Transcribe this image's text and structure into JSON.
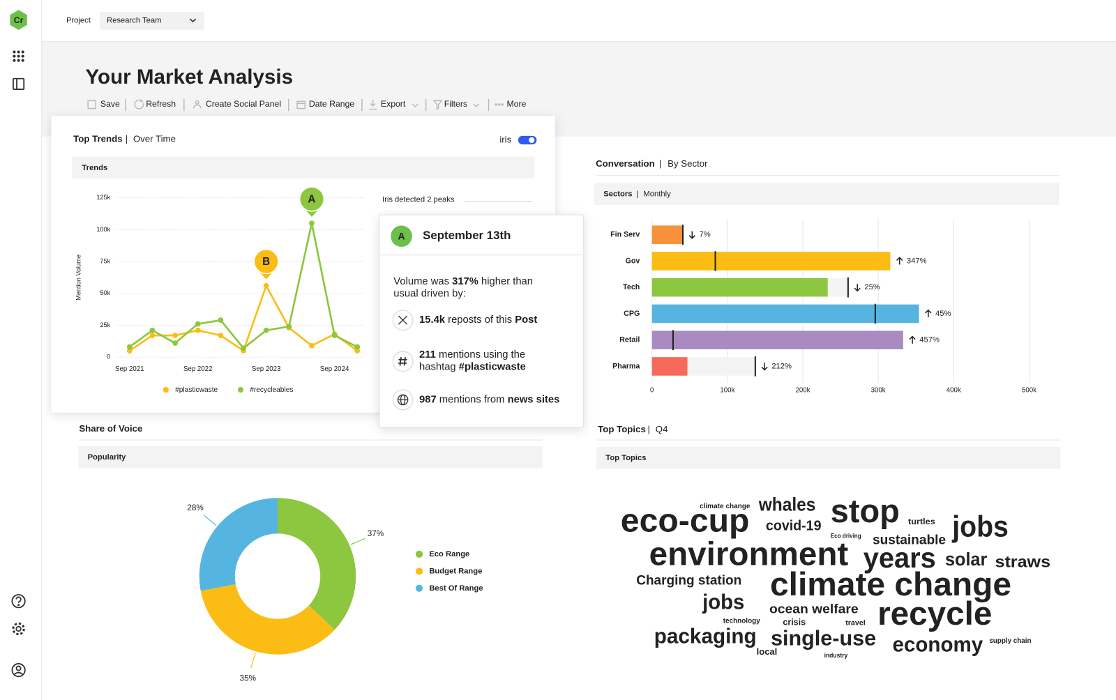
{
  "sidebar": {
    "logo": "Cr"
  },
  "topbar": {
    "project_label": "Project",
    "project_value": "Research Team"
  },
  "page": {
    "title": "Your Market Analysis",
    "toolbar": [
      "Save",
      "Refresh",
      "Create Social Panel",
      "Date Range",
      "Export",
      "Filters",
      "More"
    ]
  },
  "trends_card": {
    "title": "Top Trends",
    "separator": "|",
    "subtitle": "Over Time",
    "toggle_label": "iris",
    "toggle_on": true,
    "panel_label": "Trends",
    "peaks_note": "Iris detected 2 peaks",
    "peaks": [
      "A",
      "B"
    ]
  },
  "tooltip": {
    "badge": "A",
    "title": "September 13th",
    "body": [
      [
        {
          "text": "Volume was "
        },
        {
          "text": "317%",
          "bold": true
        },
        {
          "text": " higher than"
        }
      ],
      [
        {
          "text": "usual driven by:"
        }
      ]
    ],
    "items": [
      {
        "icon": "x",
        "lines": [
          [
            {
              "text": "15.4k",
              "bold": true
            },
            {
              "text": " reposts of this "
            },
            {
              "text": "Post",
              "bold": true
            }
          ]
        ]
      },
      {
        "icon": "hash",
        "lines": [
          [
            {
              "text": "211",
              "bold": true
            },
            {
              "text": " mentions using the"
            }
          ],
          [
            {
              "text": "hashtag "
            },
            {
              "text": "#plasticwaste",
              "bold": true
            }
          ]
        ]
      },
      {
        "icon": "globe",
        "lines": [
          [
            {
              "text": "987",
              "bold": true
            },
            {
              "text": " mentions from "
            },
            {
              "text": "news sites",
              "bold": true
            }
          ]
        ]
      }
    ]
  },
  "sector_card": {
    "title": "Conversation",
    "separator": "|",
    "subtitle": "By Sector",
    "panel_label": "Sectors",
    "panel_separator": "|",
    "panel_sublabel": "Monthly"
  },
  "voice_card": {
    "title": "Share of Voice",
    "panel_label": "Popularity"
  },
  "topics_card": {
    "title": "Top Topics",
    "separator": "|",
    "subtitle": "Q4",
    "panel_label": "Top Topics",
    "words": [
      {
        "text": "climate change",
        "color": "#f56a5a"
      },
      {
        "text": "whales",
        "color": "#56b4e0"
      },
      {
        "text": "stop",
        "color": "#f56a5a"
      },
      {
        "text": "turtles",
        "color": "#fbbd13"
      },
      {
        "text": "eco-cup",
        "color": "#f7923a"
      },
      {
        "text": "covid-19",
        "color": "#a98bc2"
      },
      {
        "text": "jobs",
        "color": "#8dc63f"
      },
      {
        "text": "Eco driving",
        "color": "#8dc63f"
      },
      {
        "text": "sustainable",
        "color": "#fbbd13"
      },
      {
        "text": "environment",
        "color": "#8dc63f"
      },
      {
        "text": "years",
        "color": "#56b4e0"
      },
      {
        "text": "solar",
        "color": "#56b4e0"
      },
      {
        "text": "straws",
        "color": "#f7923a"
      },
      {
        "text": "Charging station",
        "color": "#f7923a"
      },
      {
        "text": "climate change",
        "color": "#fbbd13"
      },
      {
        "text": "jobs",
        "color": "#a98bc2"
      },
      {
        "text": "ocean welfare",
        "color": "#f56a5a"
      },
      {
        "text": "recycle",
        "color": "#a98bc2"
      },
      {
        "text": "technology",
        "color": "#f7923a"
      },
      {
        "text": "crisis",
        "color": "#56b4e0"
      },
      {
        "text": "travel",
        "color": "#f56a5a"
      },
      {
        "text": "packaging",
        "color": "#f7923a"
      },
      {
        "text": "single-use",
        "color": "#8dc63f"
      },
      {
        "text": "economy",
        "color": "#f7923a"
      },
      {
        "text": "supply chain",
        "color": "#a98bc2"
      },
      {
        "text": "local",
        "color": "#56b4e0"
      },
      {
        "text": "industry",
        "color": "#fbbd13"
      }
    ]
  },
  "chart_data": [
    {
      "type": "line",
      "ylabel": "Mention Volume",
      "categories": [
        "Sep 2021",
        null,
        null,
        "Sep 2022",
        null,
        null,
        "Sep 2023",
        null,
        null,
        "Sep 2024",
        null
      ],
      "series": [
        {
          "name": "#plasticwaste",
          "color": "#fbbd13",
          "values": [
            5000,
            17000,
            17000,
            21000,
            17000,
            5000,
            56000,
            23000,
            9000,
            18000,
            5000
          ]
        },
        {
          "name": "#recycleables",
          "color": "#8dc63f",
          "values": [
            8000,
            21000,
            11000,
            26000,
            29000,
            7000,
            21000,
            24000,
            105000,
            17000,
            8000
          ]
        }
      ],
      "ylim": [
        0,
        125000
      ],
      "yticks": [
        0,
        {
          "value": 25000,
          "label": "25k"
        },
        {
          "value": 50000,
          "label": "50k"
        },
        {
          "value": 75000,
          "label": "75k"
        },
        {
          "value": 100000,
          "label": "100k"
        },
        {
          "value": 125000,
          "label": "125k"
        }
      ],
      "grid": true
    },
    {
      "type": "bar",
      "orientation": "horizontal",
      "categories": [
        "Fin Serv",
        "Gov",
        "Tech",
        "CPG",
        "Retail",
        "Pharma"
      ],
      "values": [
        41000,
        316000,
        233000,
        354000,
        333000,
        47000
      ],
      "marker_values": [
        41000,
        84000,
        260000,
        296000,
        28000,
        137000
      ],
      "colors": [
        "#f7923a",
        "#fbbd13",
        "#8dc63f",
        "#56b4e0",
        "#a98bc2",
        "#f56a5a"
      ],
      "change_labels": [
        "7%",
        "347%",
        "25%",
        "45%",
        "457%",
        "212%"
      ],
      "change_directions": [
        "down",
        "up",
        "down",
        "up",
        "up",
        "down"
      ],
      "xlim": [
        0,
        500000
      ],
      "xticks": [
        0,
        {
          "value": 100000,
          "label": "100k"
        },
        {
          "value": 200000,
          "label": "200k"
        },
        {
          "value": 300000,
          "label": "300k"
        },
        {
          "value": 400000,
          "label": "400k"
        },
        {
          "value": 500000,
          "label": "500k"
        }
      ],
      "grid": true
    },
    {
      "type": "pie",
      "donut": true,
      "categories": [
        "Eco Range",
        "Budget Range",
        "Best Of Range"
      ],
      "values": [
        37,
        35,
        28
      ],
      "value_labels": [
        "37%",
        "35%",
        "28%"
      ],
      "colors": [
        "#8dc63f",
        "#fbbd13",
        "#56b4e0"
      ]
    }
  ]
}
